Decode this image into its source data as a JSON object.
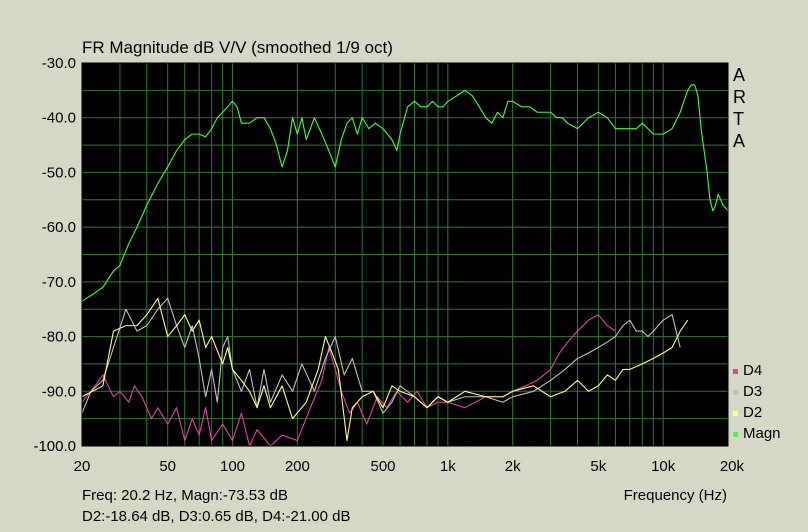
{
  "chart_data": {
    "type": "line",
    "title": "FR Magnitude dB V/V (smoothed 1/9 oct)",
    "xlabel": "Frequency (Hz)",
    "ylabel": "",
    "xscale": "log",
    "xlim": [
      20,
      20000
    ],
    "ylim": [
      -100,
      -30
    ],
    "x_ticks": [
      20,
      50,
      100,
      200,
      500,
      1000,
      2000,
      5000,
      10000,
      20000
    ],
    "x_tick_labels": [
      "20",
      "50",
      "100",
      "200",
      "500",
      "1k",
      "2k",
      "5k",
      "10k",
      "20k"
    ],
    "y_ticks": [
      -30,
      -40,
      -50,
      -60,
      -70,
      -80,
      -90,
      -100
    ],
    "y_tick_labels": [
      "-30.0",
      "-40.0",
      "-50.0",
      "-60.0",
      "-70.0",
      "-80.0",
      "-90.0",
      "-100.0"
    ],
    "grid": true,
    "background": "#000000",
    "grid_color": "#2f7a2f",
    "brand": "ARTA",
    "legend_position": "bottom-right",
    "series": [
      {
        "name": "D4",
        "color": "#e040a8",
        "points": [
          [
            20,
            -92
          ],
          [
            23,
            -89
          ],
          [
            25,
            -87
          ],
          [
            28,
            -91
          ],
          [
            30,
            -90
          ],
          [
            33,
            -92
          ],
          [
            35,
            -89
          ],
          [
            38,
            -91
          ],
          [
            42,
            -95
          ],
          [
            45,
            -93
          ],
          [
            50,
            -96
          ],
          [
            55,
            -93
          ],
          [
            60,
            -99
          ],
          [
            65,
            -95
          ],
          [
            70,
            -98
          ],
          [
            75,
            -93
          ],
          [
            80,
            -99
          ],
          [
            90,
            -96
          ],
          [
            100,
            -99
          ],
          [
            110,
            -94
          ],
          [
            120,
            -100
          ],
          [
            130,
            -97
          ],
          [
            150,
            -100
          ],
          [
            170,
            -98
          ],
          [
            200,
            -99
          ],
          [
            230,
            -93
          ],
          [
            260,
            -88
          ],
          [
            280,
            -82
          ],
          [
            300,
            -86
          ],
          [
            320,
            -90
          ],
          [
            350,
            -94
          ],
          [
            380,
            -92
          ],
          [
            420,
            -96
          ],
          [
            470,
            -91
          ],
          [
            520,
            -93
          ],
          [
            580,
            -90
          ],
          [
            650,
            -92
          ],
          [
            720,
            -90
          ],
          [
            800,
            -93
          ],
          [
            900,
            -92
          ],
          [
            1000,
            -92
          ],
          [
            1200,
            -93
          ],
          [
            1500,
            -91
          ],
          [
            1800,
            -91
          ],
          [
            2000,
            -90
          ],
          [
            2300,
            -89
          ],
          [
            2600,
            -88
          ],
          [
            3000,
            -86
          ],
          [
            3300,
            -83
          ],
          [
            3600,
            -81
          ],
          [
            4000,
            -79
          ],
          [
            4500,
            -77
          ],
          [
            5000,
            -76
          ],
          [
            5500,
            -78
          ],
          [
            6000,
            -79
          ]
        ]
      },
      {
        "name": "D3",
        "color": "#c0c0c0",
        "points": [
          [
            20,
            -94
          ],
          [
            22,
            -90
          ],
          [
            25,
            -88
          ],
          [
            28,
            -82
          ],
          [
            32,
            -75
          ],
          [
            36,
            -79
          ],
          [
            40,
            -78
          ],
          [
            45,
            -75
          ],
          [
            50,
            -73
          ],
          [
            55,
            -78
          ],
          [
            60,
            -82
          ],
          [
            65,
            -78
          ],
          [
            70,
            -84
          ],
          [
            75,
            -91
          ],
          [
            80,
            -86
          ],
          [
            85,
            -92
          ],
          [
            90,
            -82
          ],
          [
            95,
            -80
          ],
          [
            100,
            -86
          ],
          [
            110,
            -90
          ],
          [
            120,
            -86
          ],
          [
            130,
            -93
          ],
          [
            140,
            -86
          ],
          [
            150,
            -92
          ],
          [
            170,
            -87
          ],
          [
            190,
            -90
          ],
          [
            210,
            -85
          ],
          [
            240,
            -90
          ],
          [
            270,
            -84
          ],
          [
            300,
            -80
          ],
          [
            330,
            -87
          ],
          [
            360,
            -84
          ],
          [
            400,
            -90
          ],
          [
            450,
            -90
          ],
          [
            500,
            -94
          ],
          [
            550,
            -92
          ],
          [
            600,
            -89
          ],
          [
            700,
            -91
          ],
          [
            800,
            -93
          ],
          [
            900,
            -91
          ],
          [
            1000,
            -92
          ],
          [
            1200,
            -91
          ],
          [
            1500,
            -91
          ],
          [
            1800,
            -92
          ],
          [
            2000,
            -91
          ],
          [
            2500,
            -90
          ],
          [
            3000,
            -88
          ],
          [
            3500,
            -86
          ],
          [
            4000,
            -84
          ],
          [
            4500,
            -83
          ],
          [
            5000,
            -82
          ],
          [
            5500,
            -81
          ],
          [
            6000,
            -80
          ],
          [
            6500,
            -78
          ],
          [
            7000,
            -77
          ],
          [
            7500,
            -79
          ],
          [
            8000,
            -79
          ],
          [
            8500,
            -80
          ],
          [
            9000,
            -79
          ],
          [
            10000,
            -77
          ],
          [
            11000,
            -76
          ],
          [
            12000,
            -82
          ]
        ]
      },
      {
        "name": "D2",
        "color": "#ffff80",
        "points": [
          [
            20,
            -91
          ],
          [
            25,
            -89
          ],
          [
            28,
            -79
          ],
          [
            32,
            -78
          ],
          [
            36,
            -78
          ],
          [
            40,
            -76
          ],
          [
            45,
            -73
          ],
          [
            50,
            -80
          ],
          [
            55,
            -78
          ],
          [
            60,
            -76
          ],
          [
            65,
            -79
          ],
          [
            70,
            -77
          ],
          [
            75,
            -82
          ],
          [
            80,
            -80
          ],
          [
            90,
            -85
          ],
          [
            95,
            -82
          ],
          [
            100,
            -86
          ],
          [
            110,
            -88
          ],
          [
            120,
            -90
          ],
          [
            130,
            -93
          ],
          [
            140,
            -89
          ],
          [
            150,
            -93
          ],
          [
            170,
            -89
          ],
          [
            190,
            -95
          ],
          [
            220,
            -92
          ],
          [
            250,
            -86
          ],
          [
            270,
            -80
          ],
          [
            290,
            -83
          ],
          [
            310,
            -86
          ],
          [
            340,
            -99
          ],
          [
            360,
            -93
          ],
          [
            400,
            -91
          ],
          [
            450,
            -90
          ],
          [
            500,
            -93
          ],
          [
            550,
            -89
          ],
          [
            600,
            -90
          ],
          [
            700,
            -91
          ],
          [
            800,
            -93
          ],
          [
            900,
            -91
          ],
          [
            1000,
            -92
          ],
          [
            1200,
            -90
          ],
          [
            1500,
            -91
          ],
          [
            1800,
            -91
          ],
          [
            2000,
            -90
          ],
          [
            2500,
            -89
          ],
          [
            3000,
            -91
          ],
          [
            3500,
            -90
          ],
          [
            4000,
            -88
          ],
          [
            4500,
            -90
          ],
          [
            5000,
            -89
          ],
          [
            5500,
            -87
          ],
          [
            6000,
            -88
          ],
          [
            6500,
            -86
          ],
          [
            7000,
            -86
          ],
          [
            8000,
            -85
          ],
          [
            9000,
            -84
          ],
          [
            10000,
            -83
          ],
          [
            11000,
            -82
          ],
          [
            12000,
            -79
          ],
          [
            13000,
            -77
          ]
        ]
      },
      {
        "name": "Magn",
        "color": "#40ff40",
        "points": [
          [
            20,
            -73.53
          ],
          [
            22,
            -72.5
          ],
          [
            25,
            -71
          ],
          [
            28,
            -68
          ],
          [
            30,
            -67
          ],
          [
            33,
            -63
          ],
          [
            36,
            -60
          ],
          [
            40,
            -56
          ],
          [
            45,
            -52
          ],
          [
            50,
            -49
          ],
          [
            55,
            -46
          ],
          [
            60,
            -44
          ],
          [
            65,
            -43
          ],
          [
            70,
            -43
          ],
          [
            75,
            -43.5
          ],
          [
            80,
            -42
          ],
          [
            85,
            -40
          ],
          [
            90,
            -39
          ],
          [
            100,
            -37
          ],
          [
            105,
            -38
          ],
          [
            110,
            -41
          ],
          [
            120,
            -41
          ],
          [
            130,
            -40
          ],
          [
            140,
            -40
          ],
          [
            150,
            -42
          ],
          [
            160,
            -45
          ],
          [
            170,
            -49
          ],
          [
            180,
            -46
          ],
          [
            190,
            -40
          ],
          [
            200,
            -43
          ],
          [
            210,
            -40
          ],
          [
            220,
            -44
          ],
          [
            230,
            -42
          ],
          [
            240,
            -40
          ],
          [
            260,
            -43
          ],
          [
            280,
            -46
          ],
          [
            300,
            -49
          ],
          [
            320,
            -44
          ],
          [
            340,
            -41
          ],
          [
            360,
            -40
          ],
          [
            380,
            -43
          ],
          [
            400,
            -40
          ],
          [
            430,
            -42
          ],
          [
            460,
            -41
          ],
          [
            500,
            -42
          ],
          [
            550,
            -44
          ],
          [
            580,
            -46
          ],
          [
            600,
            -43
          ],
          [
            650,
            -38
          ],
          [
            700,
            -37
          ],
          [
            750,
            -38
          ],
          [
            800,
            -38
          ],
          [
            850,
            -37
          ],
          [
            900,
            -38
          ],
          [
            950,
            -38
          ],
          [
            1000,
            -37
          ],
          [
            1100,
            -36
          ],
          [
            1200,
            -35
          ],
          [
            1300,
            -36
          ],
          [
            1400,
            -38
          ],
          [
            1500,
            -40
          ],
          [
            1600,
            -41
          ],
          [
            1700,
            -39
          ],
          [
            1800,
            -40
          ],
          [
            1900,
            -37
          ],
          [
            2000,
            -37
          ],
          [
            2200,
            -38
          ],
          [
            2400,
            -38
          ],
          [
            2600,
            -39
          ],
          [
            2800,
            -39
          ],
          [
            3000,
            -39
          ],
          [
            3200,
            -40
          ],
          [
            3400,
            -40
          ],
          [
            3600,
            -41
          ],
          [
            4000,
            -42
          ],
          [
            4500,
            -40
          ],
          [
            5000,
            -39
          ],
          [
            5500,
            -40
          ],
          [
            6000,
            -42
          ],
          [
            6500,
            -42
          ],
          [
            7000,
            -42
          ],
          [
            7500,
            -42
          ],
          [
            8000,
            -41
          ],
          [
            8500,
            -42
          ],
          [
            9000,
            -43
          ],
          [
            9500,
            -43
          ],
          [
            10000,
            -43
          ],
          [
            11000,
            -42
          ],
          [
            12000,
            -39
          ],
          [
            13000,
            -35
          ],
          [
            13500,
            -34
          ],
          [
            14000,
            -34
          ],
          [
            14500,
            -36
          ],
          [
            15000,
            -42
          ],
          [
            16000,
            -50
          ],
          [
            16500,
            -55
          ],
          [
            17000,
            -57
          ],
          [
            17500,
            -56
          ],
          [
            18000,
            -54
          ],
          [
            19000,
            -56
          ],
          [
            20000,
            -57
          ]
        ]
      }
    ],
    "readout": {
      "line1": "Freq: 20.2 Hz, Magn:-73.53 dB",
      "line2": "D2:-18.64 dB, D3:0.65 dB, D4:-21.00 dB"
    }
  }
}
